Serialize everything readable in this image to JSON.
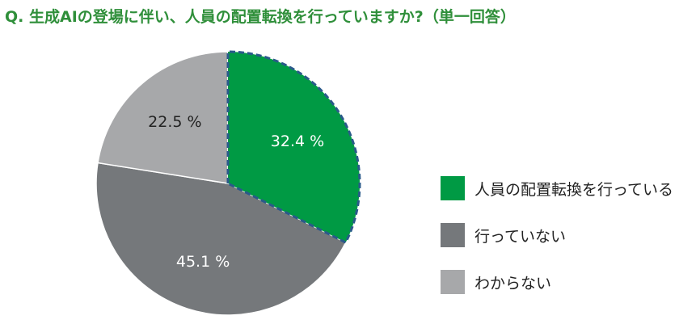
{
  "title": "Q. 生成AIの登場に伴い、人員の配置転換を行っていますか?（単一回答）",
  "colors": {
    "title": "#2f8f3a",
    "highlight_border": "#2a5a8a"
  },
  "chart_data": {
    "type": "pie",
    "title": "Q. 生成AIの登場に伴い、人員の配置転換を行っていますか?（単一回答）",
    "legend_position": "right",
    "slices": [
      {
        "label": "人員の配置転換を行っている",
        "value": 32.4,
        "display": "32.4 %",
        "color": "#009a44",
        "highlighted": true
      },
      {
        "label": "行っていない",
        "value": 45.1,
        "display": "45.1 %",
        "color": "#75787b",
        "highlighted": false
      },
      {
        "label": "わからない",
        "value": 22.5,
        "display": "22.5 %",
        "color": "#a7a8aa",
        "highlighted": false
      }
    ]
  }
}
